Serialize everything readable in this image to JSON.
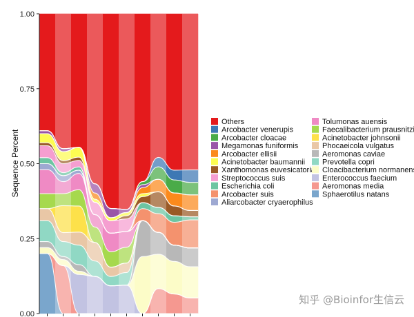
{
  "chart_data": {
    "type": "area",
    "title": "",
    "xlabel": "",
    "ylabel": "Sequence Percent",
    "ylim": [
      0,
      1
    ],
    "yticks": [
      "0.00",
      "0.25",
      "0.50",
      "0.75",
      "1.00"
    ],
    "sample_count": 10,
    "series": [
      {
        "name": "Sphaerotilus natans",
        "color": "#7aa6cc",
        "values": [
          0.2,
          0.0,
          0.0,
          0.0,
          0.0,
          0.0,
          0.0,
          0.0,
          0.0,
          0.0
        ]
      },
      {
        "name": "Aeromonas media",
        "color": "#f59890",
        "values": [
          0.0,
          0.16,
          0.0,
          0.0,
          0.0,
          0.0,
          0.0,
          0.08,
          0.06,
          0.05
        ]
      },
      {
        "name": "Enterococcus faecium",
        "color": "#c2c3e2",
        "values": [
          0.0,
          0.0,
          0.12,
          0.12,
          0.09,
          0.09,
          0.0,
          0.0,
          0.0,
          0.0
        ]
      },
      {
        "name": "Cloacibacterium normanense",
        "color": "#fcfcc8",
        "values": [
          0.02,
          0.02,
          0.01,
          0.0,
          0.0,
          0.0,
          0.19,
          0.11,
          0.1,
          0.1
        ]
      },
      {
        "name": "Aeromonas caviae",
        "color": "#b8b8b8",
        "values": [
          0.02,
          0.01,
          0.02,
          0.0,
          0.0,
          0.0,
          0.12,
          0.07,
          0.05,
          0.06
        ]
      },
      {
        "name": "Prevotella copri",
        "color": "#90d8c4",
        "values": [
          0.07,
          0.05,
          0.06,
          0.05,
          0.03,
          0.04,
          0.0,
          0.0,
          0.0,
          0.0
        ]
      },
      {
        "name": "Phocaeicola vulgatus",
        "color": "#e9c7a6",
        "values": [
          0.04,
          0.03,
          0.04,
          0.06,
          0.03,
          0.03,
          0.0,
          0.0,
          0.0,
          0.0
        ]
      },
      {
        "name": "Acinetobacter johnsonii",
        "color": "#fde14a",
        "values": [
          0.0,
          0.09,
          0.08,
          0.0,
          0.0,
          0.0,
          0.0,
          0.0,
          0.0,
          0.0
        ]
      },
      {
        "name": "Faecalibacterium prausnitzii",
        "color": "#a6d94e",
        "values": [
          0.05,
          0.04,
          0.05,
          0.05,
          0.05,
          0.05,
          0.0,
          0.0,
          0.0,
          0.0
        ]
      },
      {
        "name": "Tolumonas auensis",
        "color": "#ef8ac4",
        "values": [
          0.08,
          0.04,
          0.05,
          0.04,
          0.06,
          0.05,
          0.0,
          0.0,
          0.0,
          0.0
        ]
      },
      {
        "name": "Aliarcobacter cryaerophilus",
        "color": "#9ea9d2",
        "values": [
          0.02,
          0.02,
          0.01,
          0.0,
          0.0,
          0.0,
          0.0,
          0.0,
          0.0,
          0.0
        ]
      },
      {
        "name": "Arcobacter suis",
        "color": "#f4926e",
        "values": [
          0.0,
          0.0,
          0.0,
          0.0,
          0.0,
          0.0,
          0.04,
          0.06,
          0.07,
          0.09
        ]
      },
      {
        "name": "Escherichia coli",
        "color": "#6dc5a2",
        "values": [
          0.02,
          0.01,
          0.01,
          0.0,
          0.0,
          0.0,
          0.02,
          0.02,
          0.02,
          0.01
        ]
      },
      {
        "name": "Streptococcus suis",
        "color": "#f59ed0",
        "values": [
          0.04,
          0.03,
          0.02,
          0.04,
          0.04,
          0.04,
          0.0,
          0.0,
          0.0,
          0.0
        ]
      },
      {
        "name": "Xanthomonas euvesicatoria",
        "color": "#9a5a26",
        "values": [
          0.01,
          0.01,
          0.01,
          0.0,
          0.0,
          0.01,
          0.02,
          0.05,
          0.03,
          0.02
        ]
      },
      {
        "name": "Acinetobacter baumannii",
        "color": "#fdfd52",
        "values": [
          0.03,
          0.03,
          0.03,
          0.01,
          0.01,
          0.01,
          0.01,
          0.0,
          0.0,
          0.0
        ]
      },
      {
        "name": "Arcobacter ellisii",
        "color": "#fb8a1c",
        "values": [
          0.0,
          0.0,
          0.0,
          0.02,
          0.0,
          0.0,
          0.02,
          0.04,
          0.04,
          0.05
        ]
      },
      {
        "name": "Megamonas funiformis",
        "color": "#9a55a8",
        "values": [
          0.01,
          0.01,
          0.0,
          0.03,
          0.03,
          0.01,
          0.01,
          0.0,
          0.0,
          0.0
        ]
      },
      {
        "name": "Arcobacter cloacae",
        "color": "#4aab48",
        "values": [
          0.0,
          0.0,
          0.0,
          0.0,
          0.0,
          0.0,
          0.01,
          0.04,
          0.04,
          0.04
        ]
      },
      {
        "name": "Arcobacter venerupis",
        "color": "#3e78b4",
        "values": [
          0.0,
          0.0,
          0.0,
          0.0,
          0.0,
          0.0,
          0.0,
          0.03,
          0.03,
          0.04
        ]
      },
      {
        "name": "Others",
        "color": "#e41a1c",
        "values": [
          0.39,
          0.45,
          0.41,
          0.55,
          0.63,
          0.62,
          0.56,
          0.46,
          0.48,
          0.5
        ]
      }
    ],
    "legend_order": [
      "Others",
      "Arcobacter venerupis",
      "Arcobacter cloacae",
      "Megamonas funiformis",
      "Arcobacter ellisii",
      "Acinetobacter baumannii",
      "Xanthomonas euvesicatoria",
      "Streptococcus suis",
      "Escherichia coli",
      "Arcobacter suis",
      "Aliarcobacter cryaerophilus",
      "Tolumonas auensis",
      "Faecalibacterium prausnitzii",
      "Acinetobacter johnsonii",
      "Phocaeicola vulgatus",
      "Aeromonas caviae",
      "Prevotella copri",
      "Cloacibacterium normanense",
      "Enterococcus faecium",
      "Aeromonas media",
      "Sphaerotilus natans"
    ],
    "legend_position": "right"
  },
  "watermark": "知乎 @Bioinfor生信云"
}
